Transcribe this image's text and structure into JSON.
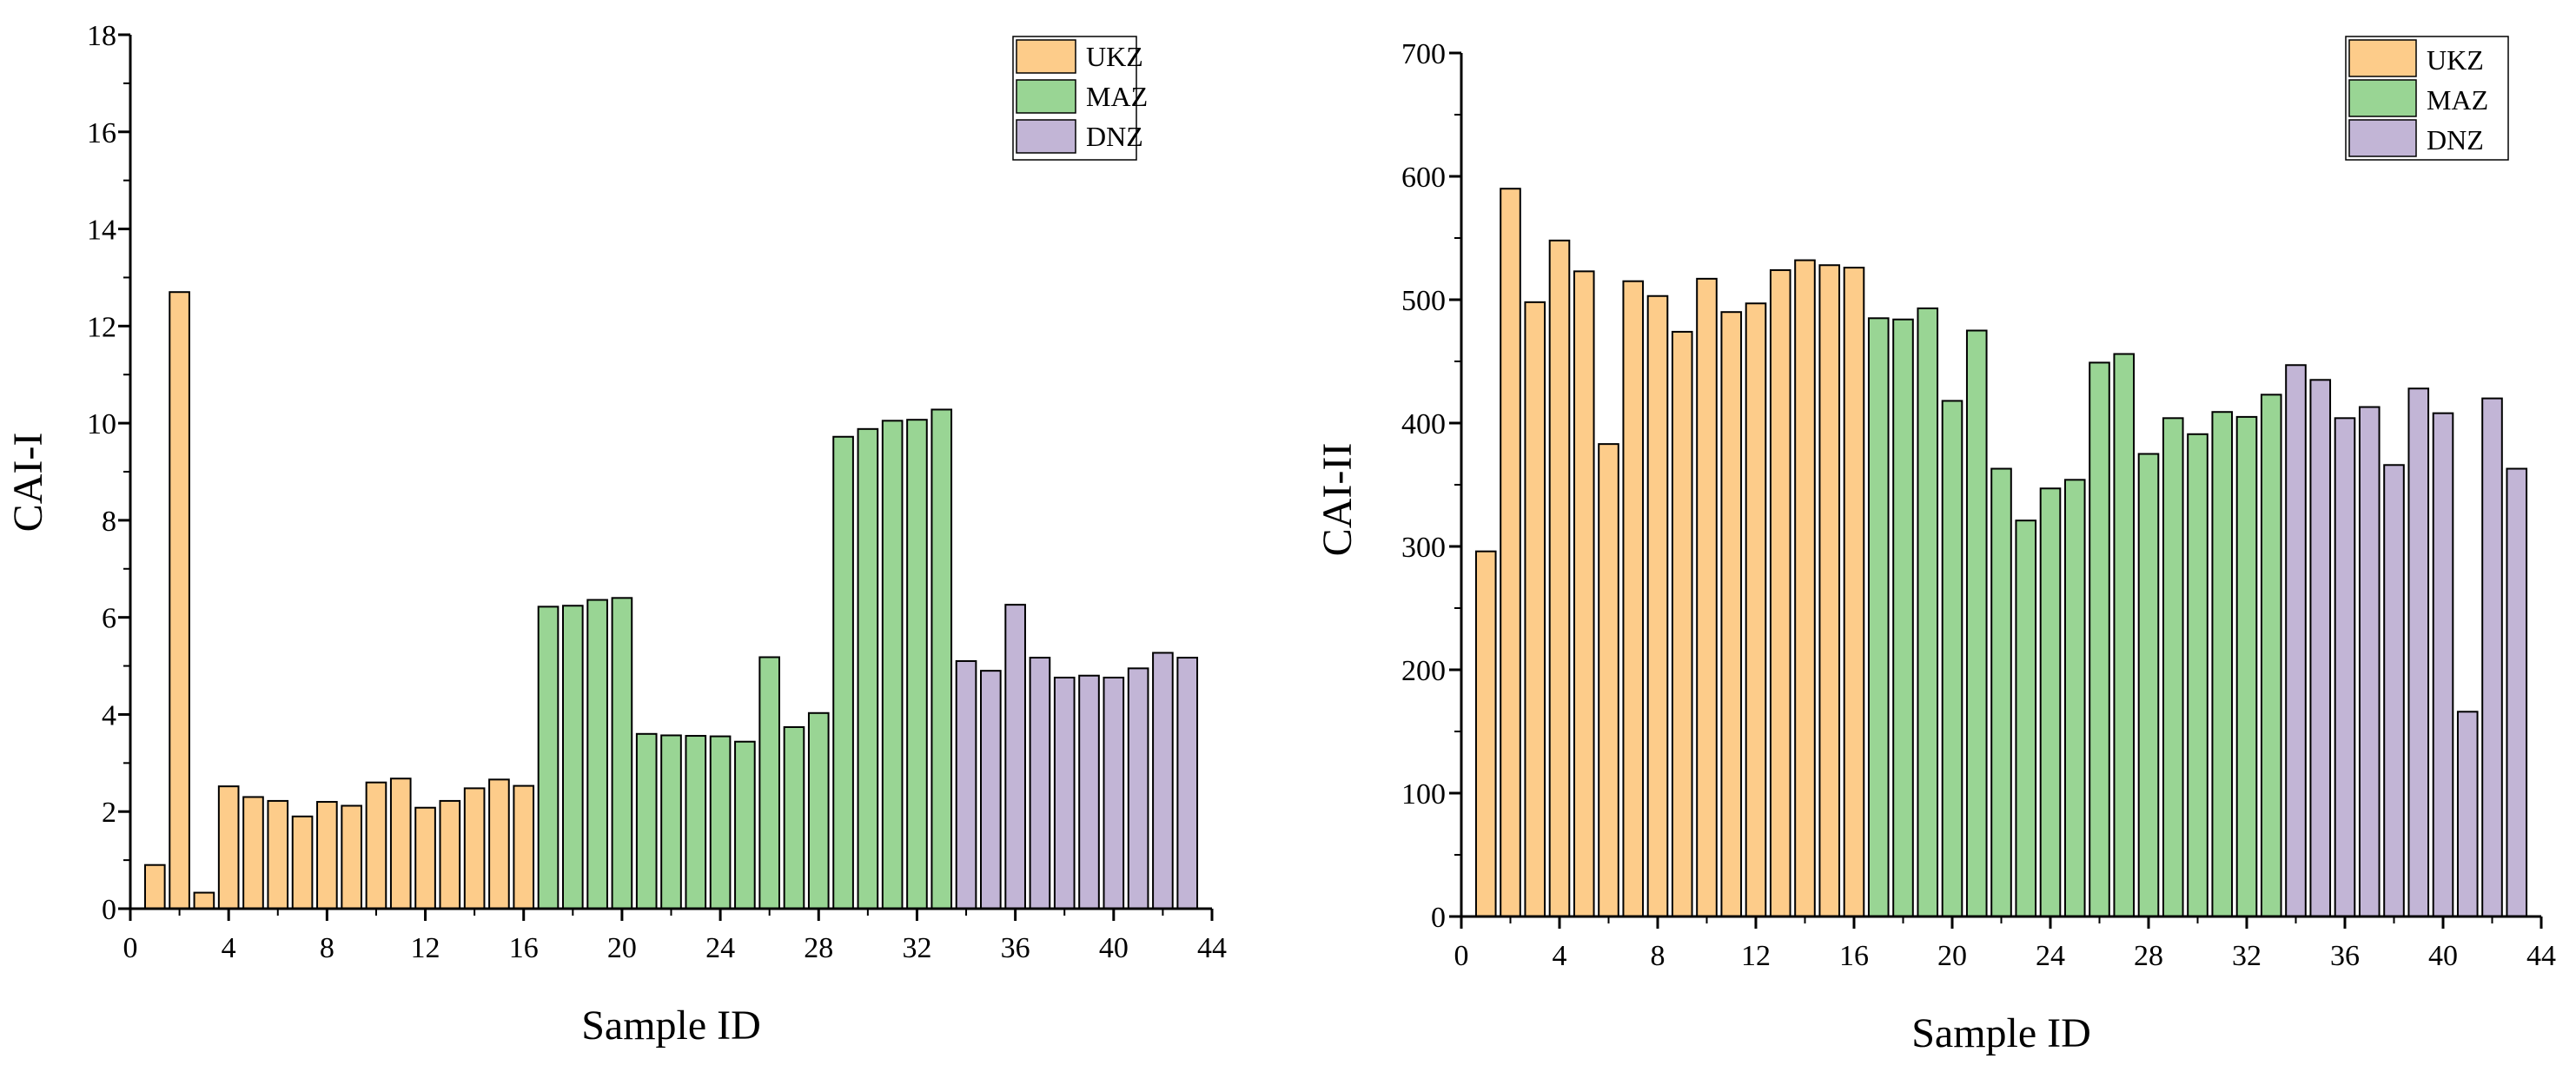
{
  "colors": {
    "UKZ": "#fdcc8a",
    "MAZ": "#99d594",
    "DNZ": "#c2b5d6"
  },
  "chart_data": [
    {
      "type": "bar",
      "id": "left",
      "xlabel": "Sample ID",
      "ylabel": "CAI-I",
      "xlim": [
        0,
        44
      ],
      "ylim": [
        0,
        18
      ],
      "xticks": [
        0,
        4,
        8,
        12,
        16,
        20,
        24,
        28,
        32,
        36,
        40,
        44
      ],
      "yticks": [
        0,
        2,
        4,
        6,
        8,
        10,
        12,
        14,
        16,
        18
      ],
      "legend": [
        "UKZ",
        "MAZ",
        "DNZ"
      ],
      "legend_position": "top-right",
      "groups": [
        {
          "name": "UKZ",
          "x": [
            1,
            2,
            3,
            4,
            5,
            6,
            7,
            8,
            9,
            10,
            11,
            12,
            13,
            14,
            15,
            16
          ],
          "values": [
            0.9,
            12.7,
            0.33,
            2.52,
            2.3,
            2.22,
            1.9,
            2.2,
            2.12,
            2.6,
            2.68,
            2.08,
            2.22,
            2.48,
            2.66,
            2.53
          ]
        },
        {
          "name": "MAZ",
          "x": [
            17,
            18,
            19,
            20,
            21,
            22,
            23,
            24,
            25,
            26,
            27,
            28,
            29,
            30,
            31,
            32,
            33
          ],
          "values": [
            6.22,
            6.24,
            6.36,
            6.4,
            3.6,
            3.57,
            3.56,
            3.55,
            3.44,
            5.18,
            3.74,
            4.03,
            9.72,
            9.88,
            10.05,
            10.07,
            10.28
          ]
        },
        {
          "name": "DNZ",
          "x": [
            34,
            35,
            36,
            37,
            38,
            39,
            40,
            41,
            42,
            43
          ],
          "values": [
            5.1,
            4.9,
            6.26,
            5.17,
            4.76,
            4.8,
            4.76,
            4.95,
            5.27,
            5.17
          ]
        }
      ]
    },
    {
      "type": "bar",
      "id": "right",
      "xlabel": "Sample ID",
      "ylabel": "CAI-II",
      "xlim": [
        0,
        44
      ],
      "ylim": [
        0,
        700
      ],
      "xticks": [
        0,
        4,
        8,
        12,
        16,
        20,
        24,
        28,
        32,
        36,
        40,
        44
      ],
      "yticks": [
        0,
        100,
        200,
        300,
        400,
        500,
        600,
        700
      ],
      "legend": [
        "UKZ",
        "MAZ",
        "DNZ"
      ],
      "legend_position": "top-right",
      "groups": [
        {
          "name": "UKZ",
          "x": [
            1,
            2,
            3,
            4,
            5,
            6,
            7,
            8,
            9,
            10,
            11,
            12,
            13,
            14,
            15,
            16
          ],
          "values": [
            296,
            590,
            498,
            548,
            523,
            383,
            515,
            503,
            474,
            517,
            490,
            497,
            524,
            532,
            528,
            526
          ]
        },
        {
          "name": "MAZ",
          "x": [
            17,
            18,
            19,
            20,
            21,
            22,
            23,
            24,
            25,
            26,
            27,
            28,
            29,
            30,
            31,
            32,
            33
          ],
          "values": [
            485,
            484,
            493,
            418,
            475,
            363,
            321,
            347,
            354,
            449,
            456,
            375,
            404,
            391,
            409,
            405,
            423
          ]
        },
        {
          "name": "DNZ",
          "x": [
            34,
            35,
            36,
            37,
            38,
            39,
            40,
            41,
            42,
            43
          ],
          "values": [
            447,
            435,
            404,
            413,
            366,
            428,
            408,
            166,
            420,
            363
          ]
        }
      ]
    }
  ]
}
